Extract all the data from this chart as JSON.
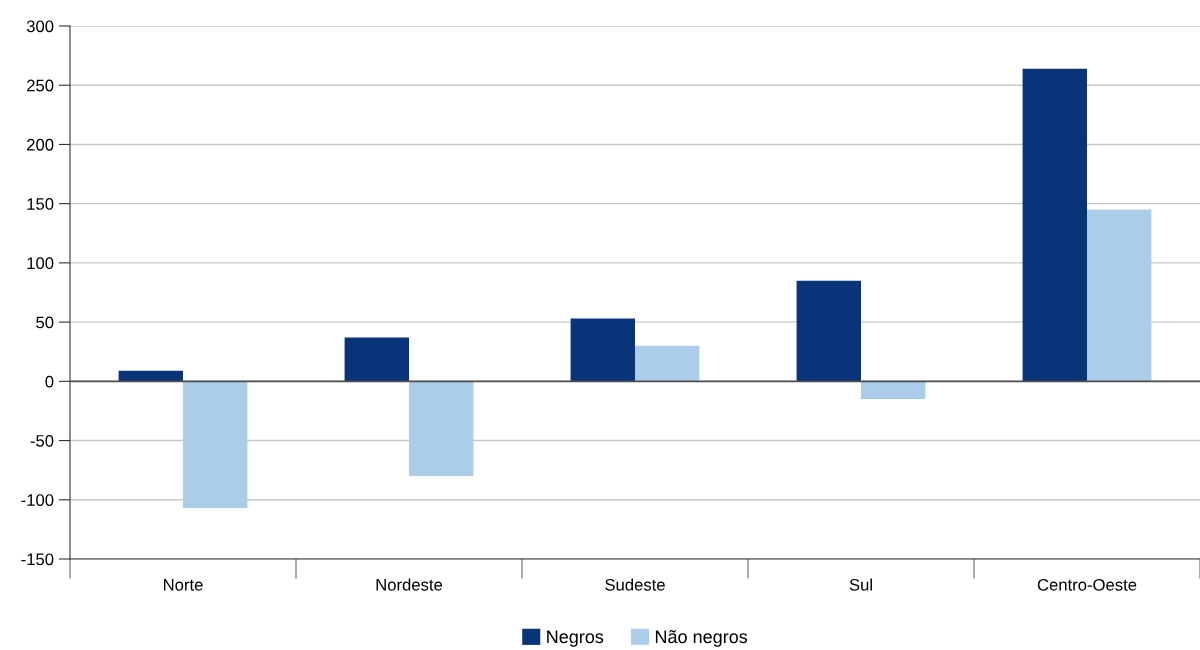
{
  "chart_data": {
    "type": "bar",
    "categories": [
      "Norte",
      "Nordeste",
      "Sudeste",
      "Sul",
      "Centro-Oeste"
    ],
    "series": [
      {
        "name": "Negros",
        "color": "#0a347a",
        "values": [
          9,
          37,
          53,
          85,
          264
        ]
      },
      {
        "name": "Não negros",
        "color": "#abcdea",
        "values": [
          -107,
          -80,
          30,
          -15,
          145
        ]
      }
    ],
    "ylim": [
      -150,
      300
    ],
    "yticks": [
      -150,
      -100,
      -50,
      0,
      50,
      100,
      150,
      200,
      250,
      300
    ],
    "grid": "y",
    "legend": "bottom",
    "ref_lines": [
      {
        "axis": "y",
        "value": 0,
        "color": "#4d4d4d"
      }
    ]
  }
}
